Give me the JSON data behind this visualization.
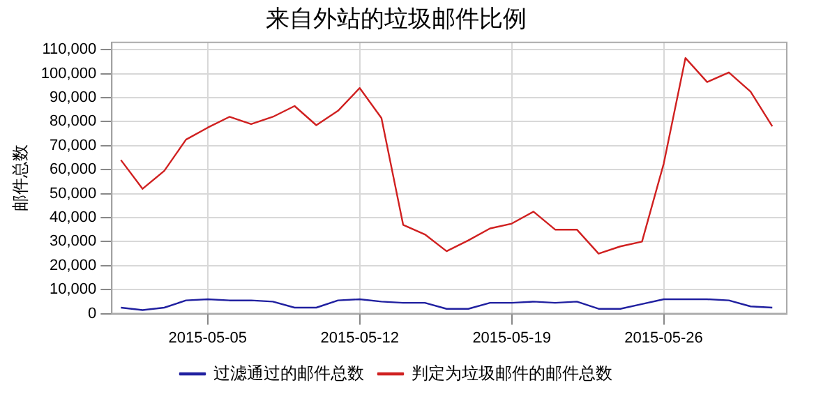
{
  "chart_data": {
    "type": "line",
    "title": "来自外站的垃圾邮件比例",
    "ylabel": "邮件总数",
    "x": [
      "2015-05-01",
      "2015-05-02",
      "2015-05-03",
      "2015-05-04",
      "2015-05-05",
      "2015-05-06",
      "2015-05-07",
      "2015-05-08",
      "2015-05-09",
      "2015-05-10",
      "2015-05-11",
      "2015-05-12",
      "2015-05-13",
      "2015-05-14",
      "2015-05-15",
      "2015-05-16",
      "2015-05-17",
      "2015-05-18",
      "2015-05-19",
      "2015-05-20",
      "2015-05-21",
      "2015-05-22",
      "2015-05-23",
      "2015-05-24",
      "2015-05-25",
      "2015-05-26",
      "2015-05-27",
      "2015-05-28",
      "2015-05-29",
      "2015-05-30",
      "2015-05-31"
    ],
    "series": [
      {
        "name": "过滤通过的邮件总数",
        "color": "#2020a0",
        "values": [
          2500,
          1500,
          2500,
          5500,
          6000,
          5500,
          5500,
          5000,
          2500,
          2500,
          5500,
          6000,
          5000,
          4500,
          4500,
          2000,
          2000,
          4500,
          4500,
          5000,
          4500,
          5000,
          2000,
          2000,
          4000,
          6000,
          6000,
          6000,
          5500,
          3000,
          2500
        ]
      },
      {
        "name": "判定为垃圾邮件的邮件总数",
        "color": "#d02020",
        "values": [
          64000,
          52000,
          59500,
          72500,
          77500,
          82000,
          79000,
          82000,
          86500,
          78500,
          84500,
          94000,
          81500,
          37000,
          33000,
          26000,
          30500,
          35500,
          37500,
          42500,
          35000,
          35000,
          25000,
          28000,
          30000,
          62500,
          106500,
          96500,
          100500,
          92500,
          78000
        ]
      }
    ],
    "xlim": [
      "2015-04-30T14:00",
      "2015-05-31T16:00"
    ],
    "xticks": [
      "2015-05-05",
      "2015-05-12",
      "2015-05-19",
      "2015-05-26"
    ],
    "ylim": [
      0,
      113000
    ],
    "yticks": [
      {
        "value": 0,
        "label": "0"
      },
      {
        "value": 10000,
        "label": "10,000"
      },
      {
        "value": 20000,
        "label": "20,000"
      },
      {
        "value": 30000,
        "label": "30,000"
      },
      {
        "value": 40000,
        "label": "40,000"
      },
      {
        "value": 50000,
        "label": "50,000"
      },
      {
        "value": 60000,
        "label": "60,000"
      },
      {
        "value": 70000,
        "label": "70,000"
      },
      {
        "value": 80000,
        "label": "80,000"
      },
      {
        "value": 90000,
        "label": "90,000"
      },
      {
        "value": 100000,
        "label": "100,000"
      },
      {
        "value": 110000,
        "label": "110,000"
      }
    ],
    "grid": true,
    "legend": "bottom",
    "marker": "none",
    "line_style": "solid"
  }
}
